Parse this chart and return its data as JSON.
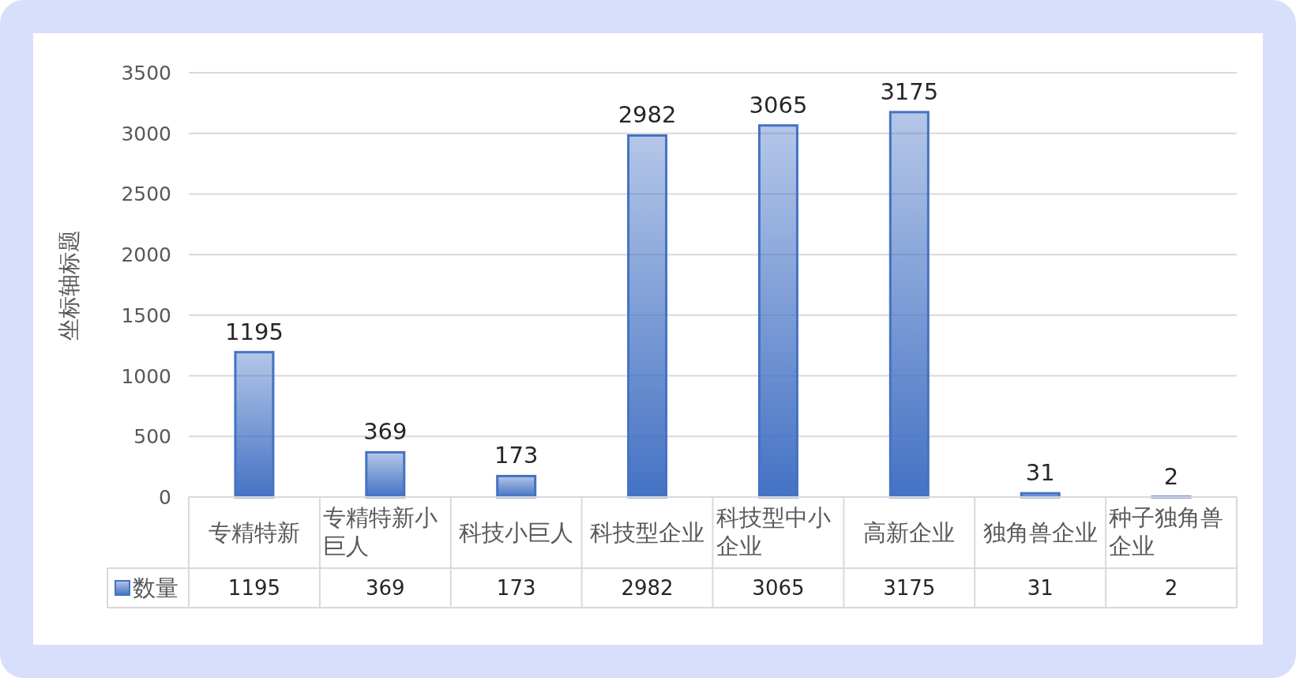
{
  "chart_data": {
    "type": "bar",
    "ylabel": "坐标轴标题",
    "categories": [
      "专精特新",
      "专精特新小巨人",
      "科技小巨人",
      "科技型企业",
      "科技型中小企业",
      "高新企业",
      "独角兽企业",
      "种子独角兽企业"
    ],
    "series": [
      {
        "name": "数量",
        "color": "#4472c4",
        "values": [
          1195,
          369,
          173,
          2982,
          3065,
          3175,
          31,
          2
        ]
      }
    ],
    "annotations": [
      {
        "text": "1195",
        "x": "专精特新",
        "y": 1195
      },
      {
        "text": "369",
        "x": "专精特新小巨人",
        "y": 369
      },
      {
        "text": "173",
        "x": "科技小巨人",
        "y": 173
      },
      {
        "text": "2982",
        "x": "科技型企业",
        "y": 2982
      },
      {
        "text": "3065",
        "x": "科技型中小企业",
        "y": 3065
      },
      {
        "text": "3175",
        "x": "高新企业",
        "y": 3175
      },
      {
        "text": "31",
        "x": "独角兽企业",
        "y": 31
      },
      {
        "text": "2",
        "x": "种子独角兽企业",
        "y": 2
      }
    ],
    "ylim": [
      0,
      3500
    ],
    "yticks": [
      0,
      500,
      1000,
      1500,
      2000,
      2500,
      3000,
      3500
    ],
    "grid": "y",
    "data_labels": true,
    "legend": "bottom"
  }
}
